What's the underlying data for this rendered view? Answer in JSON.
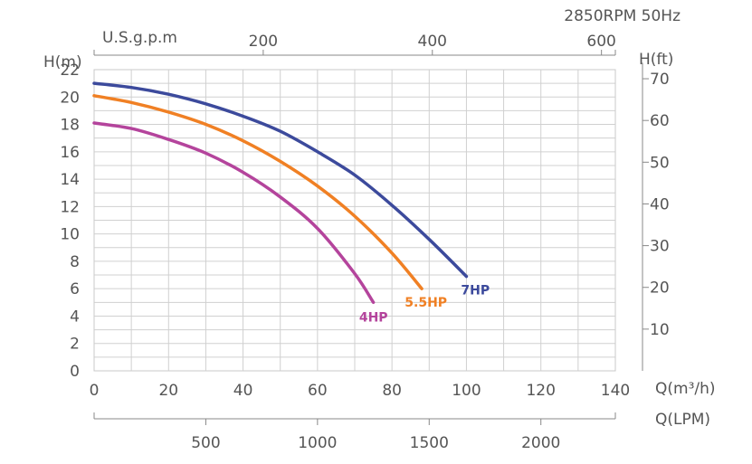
{
  "chart_data": {
    "type": "line",
    "title": "2850RPM  50Hz",
    "xlabel": "Q(m³/h)",
    "ylabel": "H(m)",
    "xlim": [
      0,
      140
    ],
    "ylim": [
      0,
      22
    ],
    "x_ticks": [
      "0",
      "20",
      "40",
      "60",
      "80",
      "100",
      "120",
      "140"
    ],
    "y_ticks": [
      "0",
      "2",
      "4",
      "6",
      "8",
      "10",
      "12",
      "14",
      "16",
      "18",
      "20",
      "22"
    ],
    "top_axis": {
      "label": "U.S.g.p.m",
      "ticks": [
        "200",
        "400",
        "600"
      ],
      "values": [
        200,
        400,
        600
      ],
      "unit_factor_per_m3h": 4.403
    },
    "right_axis": {
      "label": "H(ft)",
      "ticks": [
        "10",
        "20",
        "30",
        "40",
        "50",
        "60",
        "70"
      ],
      "values": [
        10,
        20,
        30,
        40,
        50,
        60,
        70
      ],
      "unit_factor_per_m": 3.2808
    },
    "bottom_axis": {
      "label": "Q(LPM)",
      "ticks": [
        "500",
        "1000",
        "1500",
        "2000"
      ],
      "values": [
        500,
        1000,
        1500,
        2000
      ],
      "unit_factor_per_m3h": 16.667
    },
    "series": [
      {
        "name": "7HP",
        "color": "#3c4a9c",
        "x": [
          0,
          10,
          20,
          30,
          40,
          50,
          60,
          70,
          80,
          90,
          100
        ],
        "y": [
          21.0,
          20.7,
          20.2,
          19.5,
          18.6,
          17.5,
          16.0,
          14.3,
          12.1,
          9.6,
          6.9
        ]
      },
      {
        "name": "5.5HP",
        "color": "#f08024",
        "x": [
          0,
          10,
          20,
          30,
          40,
          50,
          60,
          70,
          80,
          88
        ],
        "y": [
          20.1,
          19.6,
          18.9,
          18.0,
          16.8,
          15.3,
          13.5,
          11.3,
          8.6,
          6.0
        ]
      },
      {
        "name": "4HP",
        "color": "#b4449c",
        "x": [
          0,
          10,
          20,
          30,
          40,
          50,
          60,
          70,
          75
        ],
        "y": [
          18.1,
          17.7,
          16.9,
          15.9,
          14.5,
          12.7,
          10.4,
          7.1,
          5.0
        ]
      }
    ]
  }
}
